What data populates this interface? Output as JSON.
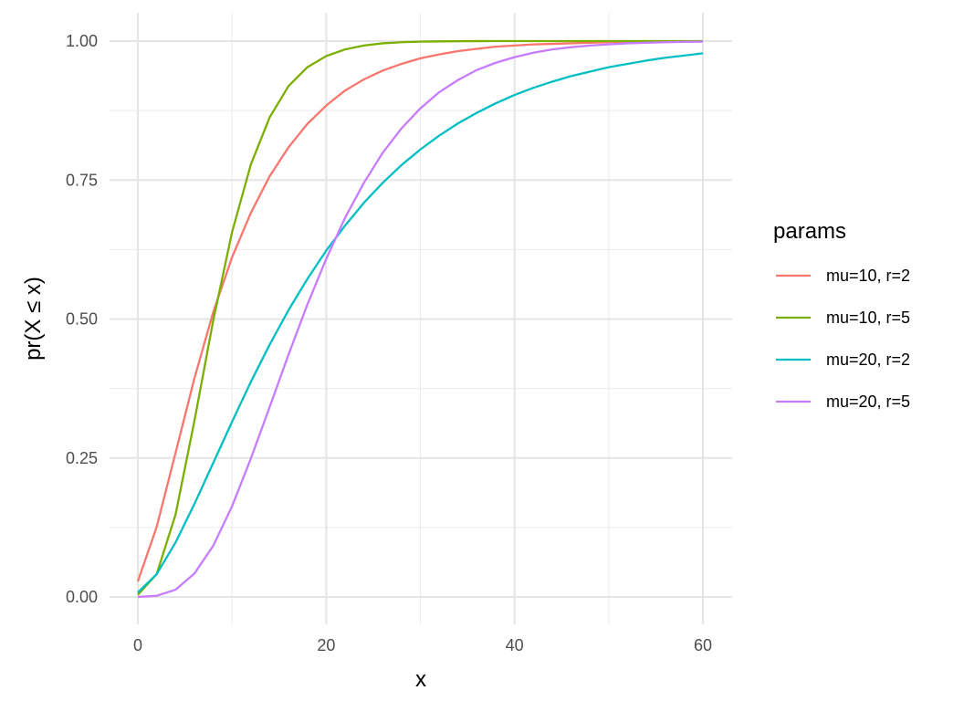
{
  "chart_data": {
    "type": "line",
    "title": "",
    "xlabel": "x",
    "ylabel": "pr(X ≤ x)",
    "xlim": [
      0,
      60
    ],
    "ylim": [
      0,
      1
    ],
    "x_ticks": [
      0,
      20,
      40,
      60
    ],
    "x_tick_labels": [
      "0",
      "20",
      "40",
      "60"
    ],
    "y_ticks": [
      0,
      0.25,
      0.5,
      0.75,
      1.0
    ],
    "y_tick_labels": [
      "0.00",
      "0.25",
      "0.50",
      "0.75",
      "1.00"
    ],
    "grid": true,
    "legend": {
      "title": "params",
      "placement": "right"
    },
    "x": [
      0,
      2,
      4,
      6,
      8,
      10,
      12,
      14,
      16,
      18,
      20,
      22,
      24,
      26,
      28,
      30,
      32,
      34,
      36,
      38,
      40,
      42,
      44,
      46,
      48,
      50,
      52,
      54,
      56,
      58,
      60
    ],
    "series": [
      {
        "name": "mu=10, r=2",
        "color": "#F8766D",
        "values": [
          0.028,
          0.126,
          0.259,
          0.393,
          0.512,
          0.611,
          0.691,
          0.757,
          0.809,
          0.851,
          0.884,
          0.911,
          0.931,
          0.947,
          0.959,
          0.969,
          0.976,
          0.982,
          0.986,
          0.99,
          0.992,
          0.994,
          0.995,
          0.996,
          0.997,
          0.998,
          0.9985,
          0.999,
          0.9993,
          0.9995,
          0.9996
        ]
      },
      {
        "name": "mu=10, r=5",
        "color": "#7CAE00",
        "values": [
          0.004,
          0.041,
          0.148,
          0.316,
          0.497,
          0.656,
          0.778,
          0.863,
          0.919,
          0.953,
          0.973,
          0.985,
          0.992,
          0.996,
          0.998,
          0.999,
          0.9995,
          0.9997,
          0.9999,
          1.0,
          1.0,
          1.0,
          1.0,
          1.0,
          1.0,
          1.0,
          1.0,
          1.0,
          1.0,
          1.0,
          1.0
        ]
      },
      {
        "name": "mu=20, r=2",
        "color": "#00BFC4",
        "values": [
          0.008,
          0.041,
          0.098,
          0.167,
          0.241,
          0.315,
          0.387,
          0.454,
          0.516,
          0.572,
          0.623,
          0.668,
          0.709,
          0.745,
          0.777,
          0.805,
          0.83,
          0.852,
          0.871,
          0.888,
          0.903,
          0.916,
          0.927,
          0.937,
          0.945,
          0.953,
          0.959,
          0.965,
          0.97,
          0.974,
          0.978
        ]
      },
      {
        "name": "mu=20, r=5",
        "color": "#C77CFF",
        "values": [
          0.0001,
          0.002,
          0.013,
          0.042,
          0.092,
          0.163,
          0.249,
          0.342,
          0.436,
          0.526,
          0.608,
          0.682,
          0.745,
          0.799,
          0.843,
          0.879,
          0.908,
          0.93,
          0.948,
          0.961,
          0.971,
          0.979,
          0.985,
          0.989,
          0.992,
          0.994,
          0.996,
          0.997,
          0.998,
          0.9985,
          0.999
        ]
      }
    ]
  }
}
